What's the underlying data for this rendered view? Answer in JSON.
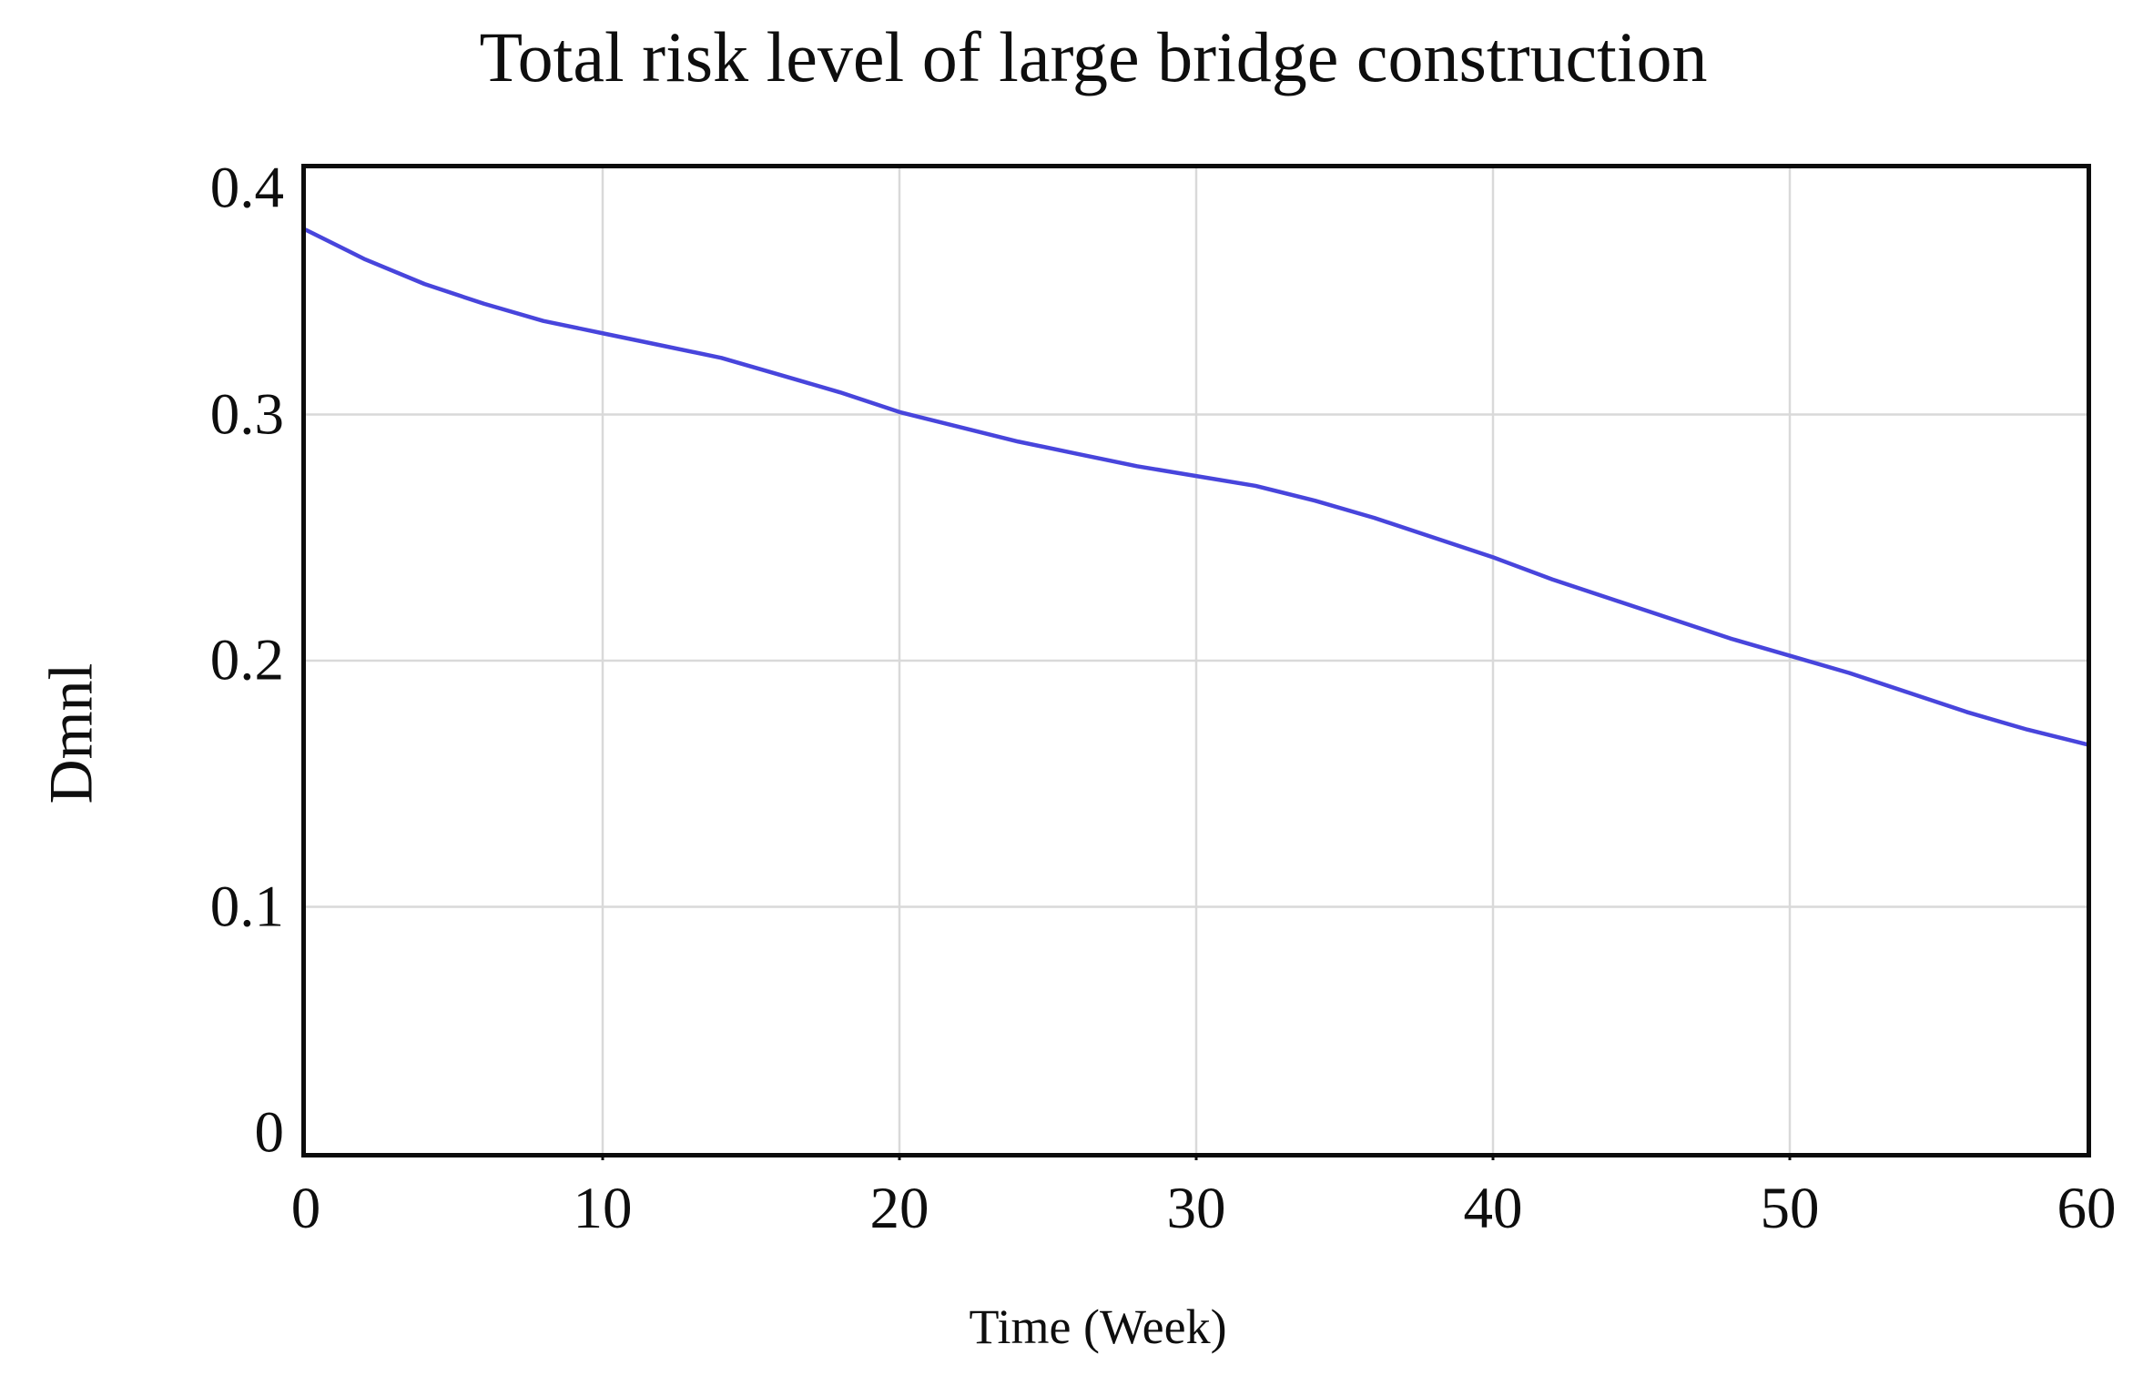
{
  "chart_data": {
    "type": "line",
    "title": "Total risk level of large bridge construction",
    "xlabel": "Time (Week)",
    "ylabel": "Dmnl",
    "xlim": [
      0,
      60
    ],
    "ylim": [
      0,
      0.4
    ],
    "x_ticks": [
      0,
      10,
      20,
      30,
      40,
      50,
      60
    ],
    "x_tick_labels": [
      "0",
      "10",
      "20",
      "30",
      "40",
      "50",
      "60"
    ],
    "y_ticks": [
      0,
      0.1,
      0.2,
      0.3,
      0.4
    ],
    "y_tick_labels": [
      "0",
      "0.1",
      "0.2",
      "0.3",
      "0.4"
    ],
    "grid": true,
    "legend_position": "none",
    "colors": {
      "line": "#4845dc",
      "grid": "#d9d9d9",
      "frame": "#0c0c0c",
      "text": "#0e0e0e"
    },
    "series": [
      {
        "name": "Total risk level of large bridge construction",
        "x": [
          0,
          2,
          4,
          6,
          8,
          10,
          12,
          14,
          16,
          18,
          20,
          22,
          24,
          26,
          28,
          30,
          32,
          34,
          36,
          38,
          40,
          42,
          44,
          46,
          48,
          50,
          52,
          54,
          56,
          58,
          60
        ],
        "y": [
          0.375,
          0.363,
          0.353,
          0.345,
          0.338,
          0.333,
          0.328,
          0.323,
          0.316,
          0.309,
          0.301,
          0.295,
          0.289,
          0.284,
          0.279,
          0.275,
          0.271,
          0.265,
          0.258,
          0.25,
          0.242,
          0.233,
          0.225,
          0.217,
          0.209,
          0.202,
          0.195,
          0.187,
          0.179,
          0.172,
          0.166
        ]
      }
    ]
  }
}
